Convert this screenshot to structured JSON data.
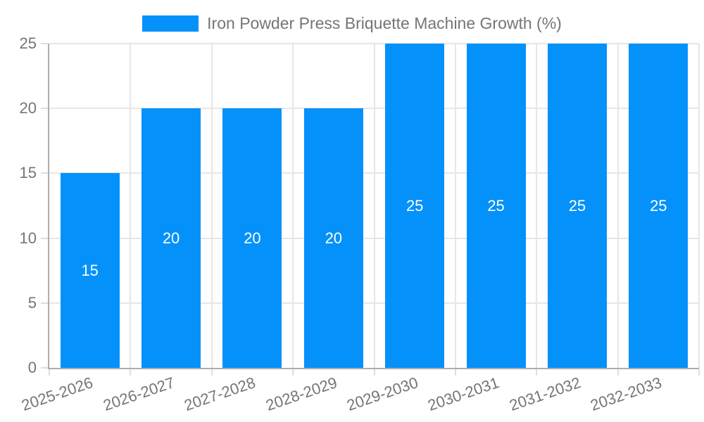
{
  "chart_data": {
    "type": "bar",
    "title": "",
    "legend": {
      "label": "Iron Powder Press Briquette Machine Growth (%)",
      "position": "top"
    },
    "categories": [
      "2025-2026",
      "2026-2027",
      "2027-2028",
      "2028-2029",
      "2029-2030",
      "2030-2031",
      "2031-2032",
      "2032-2033"
    ],
    "series": [
      {
        "name": "Iron Powder Press Briquette Machine Growth (%)",
        "values": [
          15,
          20,
          20,
          20,
          25,
          25,
          25,
          25
        ]
      }
    ],
    "bar_value_labels": [
      "15",
      "20",
      "20",
      "20",
      "25",
      "25",
      "25",
      "25"
    ],
    "xlabel": "",
    "ylabel": "",
    "ylim": [
      0,
      25
    ],
    "yticks": [
      0,
      5,
      10,
      15,
      20,
      25
    ],
    "grid": true,
    "x_label_rotation_deg": -19,
    "colors": {
      "bar": "#0591fa",
      "grid": "#e6e6e6",
      "axis": "#adadad",
      "tick_mark": "#dedede",
      "tick_text": "#757575",
      "bar_label_text": "#ffffff",
      "background": "#ffffff"
    }
  }
}
